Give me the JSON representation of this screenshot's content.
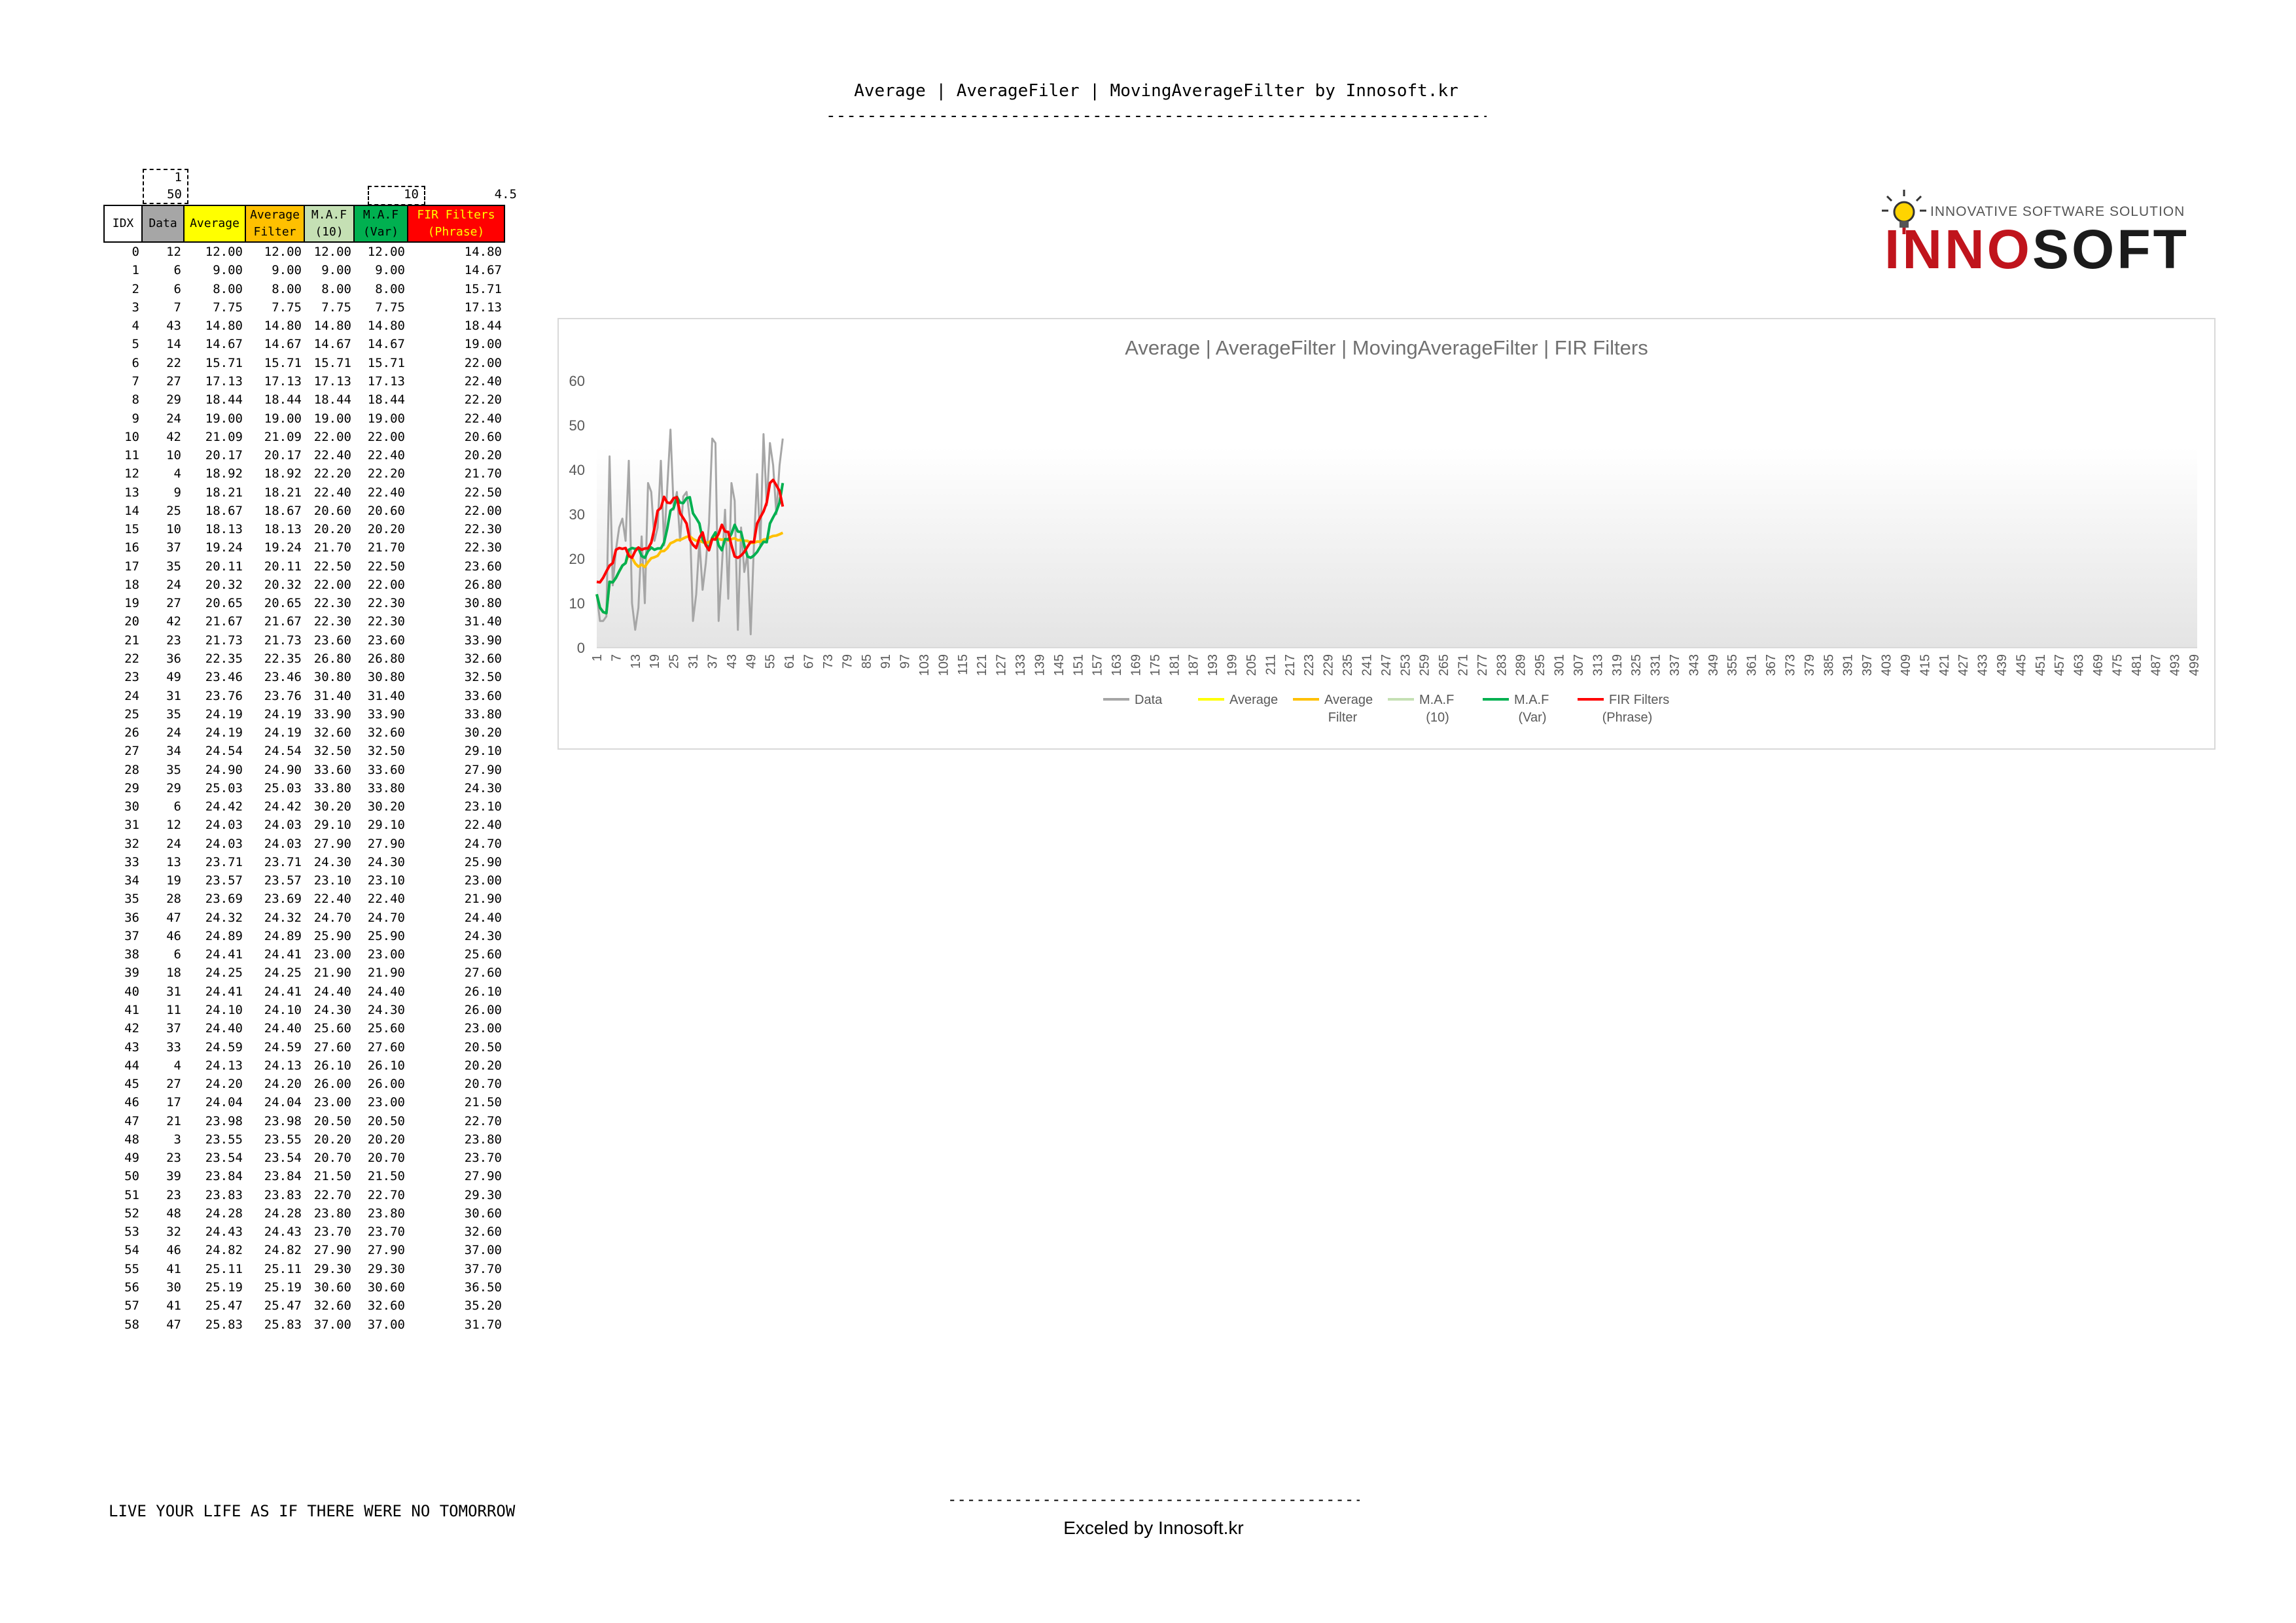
{
  "page": {
    "title": "Average | AverageFiler | MovingAverageFilter by Innosoft.kr",
    "title_rule": "------------------------------------------------------------------------------------------------",
    "motto": "LIVE YOUR LIFE AS IF THERE WERE NO TOMORROW",
    "footer_rule": "----------------------------------------------------------------",
    "footer_credit": "Exceled by Innosoft.kr"
  },
  "params": {
    "data_min": "1",
    "data_max": "50",
    "maf_var_window": "10",
    "fir_param": "4.5"
  },
  "logo": {
    "tagline": "INNOVATIVE SOFTWARE SOLUTION",
    "name_red": "INNO",
    "name_dark": "SOFT"
  },
  "table": {
    "headers": {
      "idx": "IDX",
      "data": "Data",
      "avg": "Average",
      "af_1": "Average",
      "af_2": "Filter",
      "maf_1": "M.A.F",
      "maf_2": "(10)",
      "mafv_1": "M.A.F",
      "mafv_2": "(Var)",
      "fir_1": "FIR Filters",
      "fir_2": "(Phrase)"
    },
    "header_colors": {
      "idx": "#ffffff",
      "data": "#a6a6a6",
      "avg": "#ffff00",
      "af": "#ffc000",
      "maf": "#c5e0b4",
      "mafv": "#00b050",
      "fir": "#ff0000",
      "fir_text": "#ffff00"
    },
    "rows": [
      [
        "0",
        "12",
        "12.00",
        "12.00",
        "12.00",
        "12.00",
        "14.80"
      ],
      [
        "1",
        "6",
        "9.00",
        "9.00",
        "9.00",
        "9.00",
        "14.67"
      ],
      [
        "2",
        "6",
        "8.00",
        "8.00",
        "8.00",
        "8.00",
        "15.71"
      ],
      [
        "3",
        "7",
        "7.75",
        "7.75",
        "7.75",
        "7.75",
        "17.13"
      ],
      [
        "4",
        "43",
        "14.80",
        "14.80",
        "14.80",
        "14.80",
        "18.44"
      ],
      [
        "5",
        "14",
        "14.67",
        "14.67",
        "14.67",
        "14.67",
        "19.00"
      ],
      [
        "6",
        "22",
        "15.71",
        "15.71",
        "15.71",
        "15.71",
        "22.00"
      ],
      [
        "7",
        "27",
        "17.13",
        "17.13",
        "17.13",
        "17.13",
        "22.40"
      ],
      [
        "8",
        "29",
        "18.44",
        "18.44",
        "18.44",
        "18.44",
        "22.20"
      ],
      [
        "9",
        "24",
        "19.00",
        "19.00",
        "19.00",
        "19.00",
        "22.40"
      ],
      [
        "10",
        "42",
        "21.09",
        "21.09",
        "22.00",
        "22.00",
        "20.60"
      ],
      [
        "11",
        "10",
        "20.17",
        "20.17",
        "22.40",
        "22.40",
        "20.20"
      ],
      [
        "12",
        "4",
        "18.92",
        "18.92",
        "22.20",
        "22.20",
        "21.70"
      ],
      [
        "13",
        "9",
        "18.21",
        "18.21",
        "22.40",
        "22.40",
        "22.50"
      ],
      [
        "14",
        "25",
        "18.67",
        "18.67",
        "20.60",
        "20.60",
        "22.00"
      ],
      [
        "15",
        "10",
        "18.13",
        "18.13",
        "20.20",
        "20.20",
        "22.30"
      ],
      [
        "16",
        "37",
        "19.24",
        "19.24",
        "21.70",
        "21.70",
        "22.30"
      ],
      [
        "17",
        "35",
        "20.11",
        "20.11",
        "22.50",
        "22.50",
        "23.60"
      ],
      [
        "18",
        "24",
        "20.32",
        "20.32",
        "22.00",
        "22.00",
        "26.80"
      ],
      [
        "19",
        "27",
        "20.65",
        "20.65",
        "22.30",
        "22.30",
        "30.80"
      ],
      [
        "20",
        "42",
        "21.67",
        "21.67",
        "22.30",
        "22.30",
        "31.40"
      ],
      [
        "21",
        "23",
        "21.73",
        "21.73",
        "23.60",
        "23.60",
        "33.90"
      ],
      [
        "22",
        "36",
        "22.35",
        "22.35",
        "26.80",
        "26.80",
        "32.60"
      ],
      [
        "23",
        "49",
        "23.46",
        "23.46",
        "30.80",
        "30.80",
        "32.50"
      ],
      [
        "24",
        "31",
        "23.76",
        "23.76",
        "31.40",
        "31.40",
        "33.60"
      ],
      [
        "25",
        "35",
        "24.19",
        "24.19",
        "33.90",
        "33.90",
        "33.80"
      ],
      [
        "26",
        "24",
        "24.19",
        "24.19",
        "32.60",
        "32.60",
        "30.20"
      ],
      [
        "27",
        "34",
        "24.54",
        "24.54",
        "32.50",
        "32.50",
        "29.10"
      ],
      [
        "28",
        "35",
        "24.90",
        "24.90",
        "33.60",
        "33.60",
        "27.90"
      ],
      [
        "29",
        "29",
        "25.03",
        "25.03",
        "33.80",
        "33.80",
        "24.30"
      ],
      [
        "30",
        "6",
        "24.42",
        "24.42",
        "30.20",
        "30.20",
        "23.10"
      ],
      [
        "31",
        "12",
        "24.03",
        "24.03",
        "29.10",
        "29.10",
        "22.40"
      ],
      [
        "32",
        "24",
        "24.03",
        "24.03",
        "27.90",
        "27.90",
        "24.70"
      ],
      [
        "33",
        "13",
        "23.71",
        "23.71",
        "24.30",
        "24.30",
        "25.90"
      ],
      [
        "34",
        "19",
        "23.57",
        "23.57",
        "23.10",
        "23.10",
        "23.00"
      ],
      [
        "35",
        "28",
        "23.69",
        "23.69",
        "22.40",
        "22.40",
        "21.90"
      ],
      [
        "36",
        "47",
        "24.32",
        "24.32",
        "24.70",
        "24.70",
        "24.40"
      ],
      [
        "37",
        "46",
        "24.89",
        "24.89",
        "25.90",
        "25.90",
        "24.30"
      ],
      [
        "38",
        "6",
        "24.41",
        "24.41",
        "23.00",
        "23.00",
        "25.60"
      ],
      [
        "39",
        "18",
        "24.25",
        "24.25",
        "21.90",
        "21.90",
        "27.60"
      ],
      [
        "40",
        "31",
        "24.41",
        "24.41",
        "24.40",
        "24.40",
        "26.10"
      ],
      [
        "41",
        "11",
        "24.10",
        "24.10",
        "24.30",
        "24.30",
        "26.00"
      ],
      [
        "42",
        "37",
        "24.40",
        "24.40",
        "25.60",
        "25.60",
        "23.00"
      ],
      [
        "43",
        "33",
        "24.59",
        "24.59",
        "27.60",
        "27.60",
        "20.50"
      ],
      [
        "44",
        "4",
        "24.13",
        "24.13",
        "26.10",
        "26.10",
        "20.20"
      ],
      [
        "45",
        "27",
        "24.20",
        "24.20",
        "26.00",
        "26.00",
        "20.70"
      ],
      [
        "46",
        "17",
        "24.04",
        "24.04",
        "23.00",
        "23.00",
        "21.50"
      ],
      [
        "47",
        "21",
        "23.98",
        "23.98",
        "20.50",
        "20.50",
        "22.70"
      ],
      [
        "48",
        "3",
        "23.55",
        "23.55",
        "20.20",
        "20.20",
        "23.80"
      ],
      [
        "49",
        "23",
        "23.54",
        "23.54",
        "20.70",
        "20.70",
        "23.70"
      ],
      [
        "50",
        "39",
        "23.84",
        "23.84",
        "21.50",
        "21.50",
        "27.90"
      ],
      [
        "51",
        "23",
        "23.83",
        "23.83",
        "22.70",
        "22.70",
        "29.30"
      ],
      [
        "52",
        "48",
        "24.28",
        "24.28",
        "23.80",
        "23.80",
        "30.60"
      ],
      [
        "53",
        "32",
        "24.43",
        "24.43",
        "23.70",
        "23.70",
        "32.60"
      ],
      [
        "54",
        "46",
        "24.82",
        "24.82",
        "27.90",
        "27.90",
        "37.00"
      ],
      [
        "55",
        "41",
        "25.11",
        "25.11",
        "29.30",
        "29.30",
        "37.70"
      ],
      [
        "56",
        "30",
        "25.19",
        "25.19",
        "30.60",
        "30.60",
        "36.50"
      ],
      [
        "57",
        "41",
        "25.47",
        "25.47",
        "32.60",
        "32.60",
        "35.20"
      ],
      [
        "58",
        "47",
        "25.83",
        "25.83",
        "37.00",
        "37.00",
        "31.70"
      ]
    ]
  },
  "chart_data": {
    "type": "line",
    "title": "Average | AverageFilter | MovingAverageFilter | FIR Filters",
    "xlabel": "",
    "ylabel": "",
    "ylim": [
      0,
      60
    ],
    "yticks": [
      "0",
      "10",
      "20",
      "30",
      "40",
      "50",
      "60"
    ],
    "x_range": [
      1,
      500
    ],
    "x_tick_labels": [
      "1",
      "7",
      "13",
      "19",
      "25",
      "31",
      "37",
      "43",
      "49",
      "55",
      "61",
      "67",
      "73",
      "79",
      "85",
      "91",
      "97",
      "103",
      "109",
      "115",
      "121",
      "127",
      "133",
      "139",
      "145",
      "151",
      "157",
      "163",
      "169",
      "175",
      "181",
      "187",
      "193",
      "199",
      "205",
      "211",
      "217",
      "223",
      "229",
      "235",
      "241",
      "247",
      "253",
      "259",
      "265",
      "271",
      "277",
      "283",
      "289",
      "295",
      "301",
      "307",
      "313",
      "319",
      "325",
      "331",
      "337",
      "343",
      "349",
      "355",
      "361",
      "367",
      "373",
      "379",
      "385",
      "391",
      "397",
      "403",
      "409",
      "415",
      "421",
      "427",
      "433",
      "439",
      "445",
      "451",
      "457",
      "463",
      "469",
      "475",
      "481",
      "487",
      "493",
      "499"
    ],
    "legend_position": "bottom",
    "grid": false,
    "series": [
      {
        "name": "Data",
        "color": "#a6a6a6",
        "values": [
          12,
          6,
          6,
          7,
          43,
          14,
          22,
          27,
          29,
          24,
          42,
          10,
          4,
          9,
          25,
          10,
          37,
          35,
          24,
          27,
          42,
          23,
          36,
          49,
          31,
          35,
          24,
          34,
          35,
          29,
          6,
          12,
          24,
          13,
          19,
          28,
          47,
          46,
          6,
          18,
          31,
          11,
          37,
          33,
          4,
          27,
          17,
          21,
          3,
          23,
          39,
          23,
          48,
          32,
          46,
          41,
          30,
          41,
          47
        ]
      },
      {
        "name": "Average",
        "color": "#ffff00",
        "values": [
          12,
          9,
          8,
          7.75,
          14.8,
          14.67,
          15.71,
          17.13,
          18.44,
          19,
          21.09,
          20.17,
          18.92,
          18.21,
          18.67,
          18.13,
          19.24,
          20.11,
          20.32,
          20.65,
          21.67,
          21.73,
          22.35,
          23.46,
          23.76,
          24.19,
          24.19,
          24.54,
          24.9,
          25.03,
          24.42,
          24.03,
          24.03,
          23.71,
          23.57,
          23.69,
          24.32,
          24.89,
          24.41,
          24.25,
          24.41,
          24.1,
          24.4,
          24.59,
          24.13,
          24.2,
          24.04,
          23.98,
          23.55,
          23.54,
          23.84,
          23.83,
          24.28,
          24.43,
          24.82,
          25.11,
          25.19,
          25.47,
          25.83
        ]
      },
      {
        "name": "Average Filter",
        "color": "#ffc000",
        "values": [
          12,
          9,
          8,
          7.75,
          14.8,
          14.67,
          15.71,
          17.13,
          18.44,
          19,
          21.09,
          20.17,
          18.92,
          18.21,
          18.67,
          18.13,
          19.24,
          20.11,
          20.32,
          20.65,
          21.67,
          21.73,
          22.35,
          23.46,
          23.76,
          24.19,
          24.19,
          24.54,
          24.9,
          25.03,
          24.42,
          24.03,
          24.03,
          23.71,
          23.57,
          23.69,
          24.32,
          24.89,
          24.41,
          24.25,
          24.41,
          24.1,
          24.4,
          24.59,
          24.13,
          24.2,
          24.04,
          23.98,
          23.55,
          23.54,
          23.84,
          23.83,
          24.28,
          24.43,
          24.82,
          25.11,
          25.19,
          25.47,
          25.83
        ]
      },
      {
        "name": "M.A.F (10)",
        "color": "#c5e0b4",
        "values": [
          12,
          9,
          8,
          7.75,
          14.8,
          14.67,
          15.71,
          17.13,
          18.44,
          19,
          22,
          22.4,
          22.2,
          22.4,
          20.6,
          20.2,
          21.7,
          22.5,
          22,
          22.3,
          22.3,
          23.6,
          26.8,
          30.8,
          31.4,
          33.9,
          32.6,
          32.5,
          33.6,
          33.8,
          30.2,
          29.1,
          27.9,
          24.3,
          23.1,
          22.4,
          24.7,
          25.9,
          23,
          21.9,
          24.4,
          24.3,
          25.6,
          27.6,
          26.1,
          26,
          23,
          20.5,
          20.2,
          20.7,
          21.5,
          22.7,
          23.8,
          23.7,
          27.9,
          29.3,
          30.6,
          32.6,
          37
        ]
      },
      {
        "name": "M.A.F (Var)",
        "color": "#00b050",
        "values": [
          12,
          9,
          8,
          7.75,
          14.8,
          14.67,
          15.71,
          17.13,
          18.44,
          19,
          22,
          22.4,
          22.2,
          22.4,
          20.6,
          20.2,
          21.7,
          22.5,
          22,
          22.3,
          22.3,
          23.6,
          26.8,
          30.8,
          31.4,
          33.9,
          32.6,
          32.5,
          33.6,
          33.8,
          30.2,
          29.1,
          27.9,
          24.3,
          23.1,
          22.4,
          24.7,
          25.9,
          23,
          21.9,
          24.4,
          24.3,
          25.6,
          27.6,
          26.1,
          26,
          23,
          20.5,
          20.2,
          20.7,
          21.5,
          22.7,
          23.8,
          23.7,
          27.9,
          29.3,
          30.6,
          32.6,
          37
        ]
      },
      {
        "name": "FIR Filters (Phrase)",
        "color": "#ff0000",
        "values": [
          14.8,
          14.67,
          15.71,
          17.13,
          18.44,
          19,
          22,
          22.4,
          22.2,
          22.4,
          20.6,
          20.2,
          21.7,
          22.5,
          22,
          22.3,
          22.3,
          23.6,
          26.8,
          30.8,
          31.4,
          33.9,
          32.6,
          32.5,
          33.6,
          33.8,
          30.2,
          29.1,
          27.9,
          24.3,
          23.1,
          22.4,
          24.7,
          25.9,
          23,
          21.9,
          24.4,
          24.3,
          25.6,
          27.6,
          26.1,
          26,
          23,
          20.5,
          20.2,
          20.7,
          21.5,
          22.7,
          23.8,
          23.7,
          27.9,
          29.3,
          30.6,
          32.6,
          37,
          37.7,
          36.5,
          35.2,
          31.7
        ]
      }
    ],
    "legend": [
      {
        "line1": "Data",
        "line2": "",
        "color": "#a6a6a6"
      },
      {
        "line1": "Average",
        "line2": "",
        "color": "#ffff00"
      },
      {
        "line1": "Average",
        "line2": "Filter",
        "color": "#ffc000"
      },
      {
        "line1": "M.A.F",
        "line2": "(10)",
        "color": "#c5e0b4"
      },
      {
        "line1": "M.A.F",
        "line2": "(Var)",
        "color": "#00b050"
      },
      {
        "line1": "FIR Filters",
        "line2": "(Phrase)",
        "color": "#ff0000"
      }
    ]
  }
}
